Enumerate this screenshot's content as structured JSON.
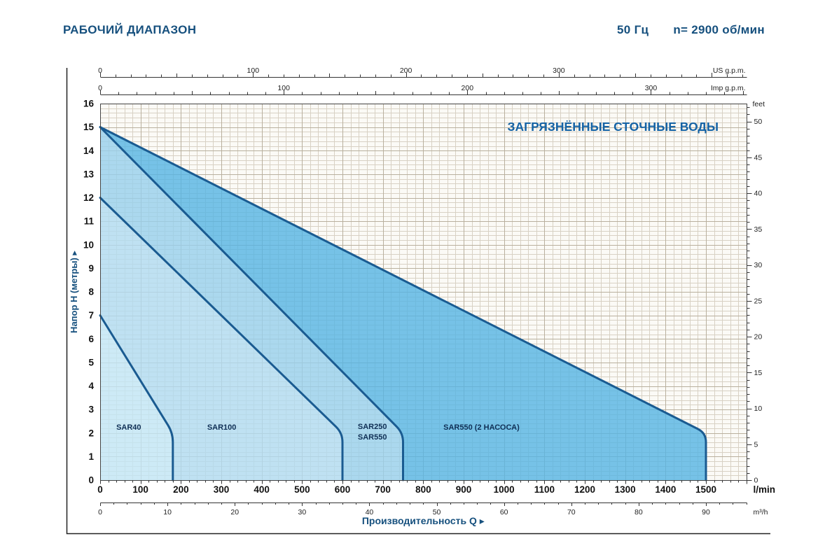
{
  "header": {
    "title": "РАБОЧИЙ ДИАПАЗОН",
    "frequency": "50 Гц",
    "speed": "n= 2900 об/мин"
  },
  "chart_data": {
    "type": "area",
    "title": "ЗАГРЯЗНЁННЫЕ СТОЧНЫЕ ВОДЫ",
    "x_label": "Производительность Q  ▸",
    "y_label": "Напор H (метры) ▸",
    "flow_range_lmin": [
      0,
      1600
    ],
    "head_range_m": [
      0,
      16
    ],
    "grid": {
      "minor_flow_lmin": 20,
      "major_flow_lmin": 100,
      "minor_head_m": 0.2,
      "major_head_m": 1
    },
    "axes": {
      "lmin": {
        "unit": "l/min",
        "tick_labels": [
          0,
          100,
          200,
          300,
          400,
          500,
          600,
          700,
          800,
          900,
          1000,
          1100,
          1200,
          1300,
          1400,
          1500
        ],
        "minor_step": 20
      },
      "m3h": {
        "unit": "m³/h",
        "tick_labels": [
          0,
          10,
          20,
          30,
          40,
          50,
          60,
          70,
          80,
          90
        ],
        "minor_step": 2,
        "lmin_per_unit": 16.6667
      },
      "usgpm": {
        "unit": "US g.p.m.",
        "tick_labels": [
          0,
          100,
          200,
          300
        ],
        "minor_step": 10,
        "lmin_per_unit": 3.78541
      },
      "impgpm": {
        "unit": "Imp g.p.m.",
        "tick_labels": [
          0,
          100,
          200,
          300
        ],
        "minor_step": 10,
        "lmin_per_unit": 4.54609
      },
      "head_m": {
        "unit": "",
        "tick_labels": [
          0,
          1,
          2,
          3,
          4,
          5,
          6,
          7,
          8,
          9,
          10,
          11,
          12,
          13,
          14,
          15,
          16
        ]
      },
      "feet": {
        "unit": "feet",
        "tick_labels": [
          0,
          5,
          10,
          15,
          20,
          25,
          30,
          35,
          40,
          45,
          50
        ],
        "minor_step": 1,
        "m_per_unit": 0.3048
      }
    },
    "series": [
      {
        "id": "sar550-2pump",
        "label_lines": [
          "SAR550 (2 НАСОСА)"
        ],
        "label_flow_lmin": 850,
        "head_at_zero_flow_m": 15,
        "max_flow_lmin": 1500,
        "head_at_max_flow_m": 2,
        "fill": "#55b4e4"
      },
      {
        "id": "sar250-sar550",
        "label_lines": [
          "SAR250",
          "SAR550"
        ],
        "label_flow_lmin": 638,
        "head_at_zero_flow_m": 15,
        "max_flow_lmin": 750,
        "head_at_max_flow_m": 2,
        "fill": "#97d0ec"
      },
      {
        "id": "sar100",
        "label_lines": [
          "SAR100"
        ],
        "label_flow_lmin": 265,
        "head_at_zero_flow_m": 12,
        "max_flow_lmin": 600,
        "head_at_max_flow_m": 2,
        "fill": "#b0dbf1"
      },
      {
        "id": "sar40",
        "label_lines": [
          "SAR40"
        ],
        "label_flow_lmin": 40,
        "head_at_zero_flow_m": 7,
        "max_flow_lmin": 180,
        "head_at_max_flow_m": 2,
        "fill": "#c2e6f6"
      }
    ],
    "colors": {
      "region_border": "#1a5b91",
      "fill_opacity": 0.8,
      "grid_minor": "#d8d1c4",
      "grid_major": "#b9b09e",
      "plot_background": "#fbfaf6",
      "axis_line": "#333333",
      "tick_text": "#222222",
      "number_text": "#111111",
      "header_text": "#16507e",
      "title_text": "#1563a5",
      "region_label_text": "#0f2f55",
      "frame": "#222222"
    }
  }
}
